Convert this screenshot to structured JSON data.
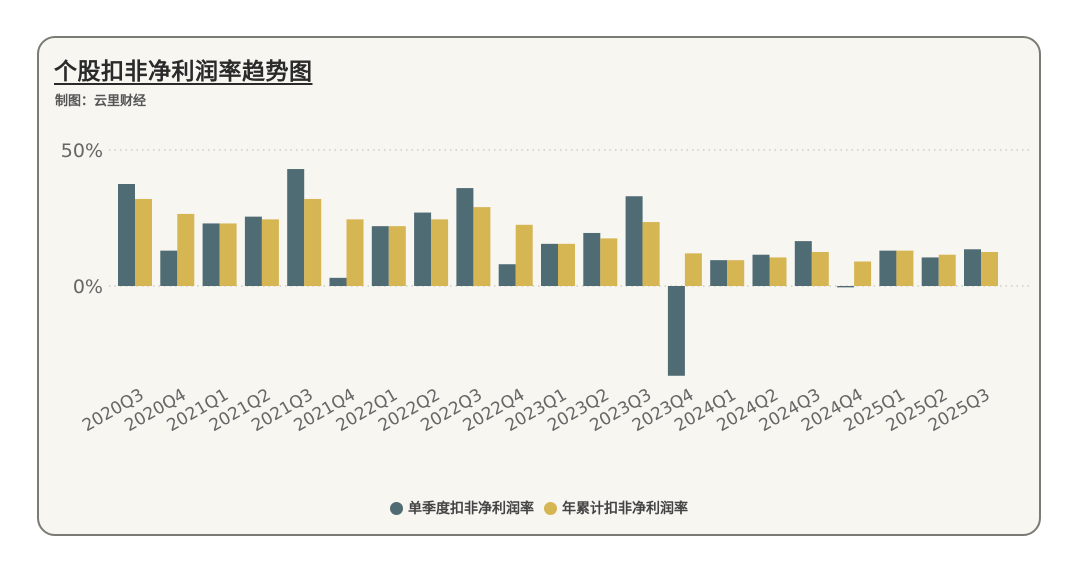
{
  "card": {
    "title": "个股扣非净利润率趋势图",
    "subtitle": "制图：云里财经"
  },
  "chart_data": {
    "type": "bar",
    "title": "个股扣非净利润率趋势图",
    "xlabel": "",
    "ylabel": "",
    "ylim": [
      -35,
      52
    ],
    "yticks": [
      0,
      50
    ],
    "ytick_labels": [
      "0%",
      "50%"
    ],
    "grid": "horizontal dotted",
    "legend_position": "bottom",
    "categories": [
      "2020Q3",
      "2020Q4",
      "2021Q1",
      "2021Q2",
      "2021Q3",
      "2021Q4",
      "2022Q1",
      "2022Q2",
      "2022Q3",
      "2022Q4",
      "2023Q1",
      "2023Q2",
      "2023Q3",
      "2023Q4",
      "2024Q1",
      "2024Q2",
      "2024Q3",
      "2024Q4",
      "2025Q1",
      "2025Q2",
      "2025Q3"
    ],
    "series": [
      {
        "name": "单季度扣非净利润率",
        "color": "#4f6b73",
        "values": [
          37.5,
          13.0,
          23.0,
          25.5,
          43.0,
          3.0,
          22.0,
          27.0,
          36.0,
          8.0,
          15.5,
          19.5,
          33.0,
          -33.0,
          9.5,
          11.5,
          16.5,
          -0.5,
          13.0,
          10.5,
          13.5
        ]
      },
      {
        "name": "年累计扣非净利润率",
        "color": "#d6b553",
        "values": [
          32.0,
          26.5,
          23.0,
          24.5,
          32.0,
          24.5,
          22.0,
          24.5,
          29.0,
          22.5,
          15.5,
          17.5,
          23.5,
          12.0,
          9.5,
          10.5,
          12.5,
          9.0,
          13.0,
          11.5,
          12.5
        ]
      }
    ]
  }
}
